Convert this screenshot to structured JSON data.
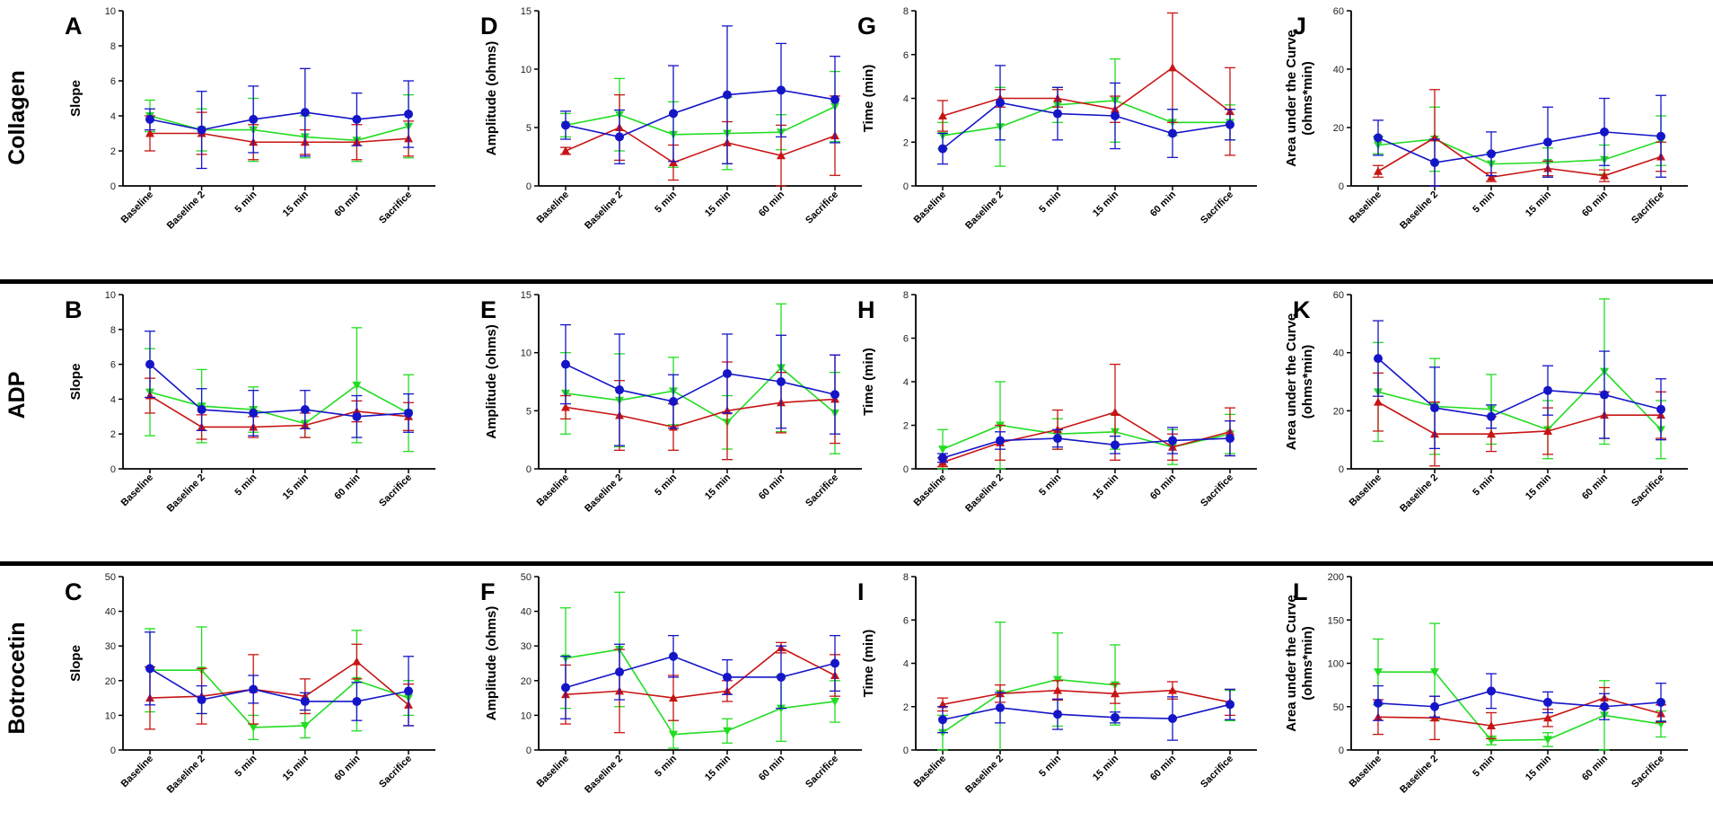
{
  "figure": {
    "row_labels": [
      "Collagen",
      "ADP",
      "Botrocetin"
    ],
    "series_colors": {
      "blue": "#1515c8",
      "green": "#22dd22",
      "red": "#c81414"
    }
  },
  "chart_data": [
    {
      "panel": "A",
      "agonist": "Collagen",
      "type": "line",
      "ylabel": "Slope",
      "ylim": [
        0,
        10
      ],
      "yticks": [
        0,
        2,
        4,
        6,
        8,
        10
      ],
      "categories": [
        "Baseline",
        "Baseline 2",
        "5 min",
        "15 min",
        "60 min",
        "Sacrifice"
      ],
      "series": [
        {
          "name": "blue",
          "values": [
            3.8,
            3.2,
            3.8,
            4.2,
            3.8,
            4.1
          ],
          "err": [
            0.6,
            2.2,
            1.9,
            2.5,
            1.5,
            1.9
          ]
        },
        {
          "name": "green",
          "values": [
            4.0,
            3.2,
            3.2,
            2.8,
            2.6,
            3.4
          ],
          "err": [
            0.9,
            1.2,
            1.8,
            1.2,
            1.2,
            1.8
          ]
        },
        {
          "name": "red",
          "values": [
            3.0,
            3.0,
            2.5,
            2.5,
            2.5,
            2.7
          ],
          "err": [
            1.0,
            1.2,
            1.0,
            0.7,
            1.0,
            1.0
          ]
        }
      ]
    },
    {
      "panel": "D",
      "agonist": "Collagen",
      "type": "line",
      "ylabel": "Amplitude (ohms)",
      "ylim": [
        0,
        15
      ],
      "yticks": [
        0,
        5,
        10,
        15
      ],
      "categories": [
        "Baseline",
        "Baseline 2",
        "5 min",
        "15 min",
        "60 min",
        "Sacrifice"
      ],
      "series": [
        {
          "name": "blue",
          "values": [
            5.2,
            4.2,
            6.2,
            7.8,
            8.2,
            7.4
          ],
          "err": [
            1.2,
            2.3,
            4.1,
            5.9,
            4.0,
            3.7
          ]
        },
        {
          "name": "green",
          "values": [
            5.2,
            6.1,
            4.4,
            4.5,
            4.6,
            6.8
          ],
          "err": [
            1.0,
            3.1,
            2.8,
            3.1,
            1.5,
            3.0
          ]
        },
        {
          "name": "red",
          "values": [
            3.0,
            5.0,
            2.0,
            3.7,
            2.6,
            4.3
          ],
          "err": [
            0.3,
            2.8,
            1.5,
            1.8,
            2.6,
            3.4
          ]
        }
      ]
    },
    {
      "panel": "G",
      "agonist": "Collagen",
      "type": "line",
      "ylabel": "Time (min)",
      "ylim": [
        0,
        8
      ],
      "yticks": [
        0,
        2,
        4,
        6,
        8
      ],
      "categories": [
        "Baseline",
        "Baseline 2",
        "5 min",
        "15 min",
        "60 min",
        "Sacrifice"
      ],
      "series": [
        {
          "name": "blue",
          "values": [
            1.7,
            3.8,
            3.3,
            3.2,
            2.4,
            2.8
          ],
          "err": [
            0.7,
            1.7,
            1.2,
            1.5,
            1.1,
            0.7
          ]
        },
        {
          "name": "green",
          "values": [
            2.3,
            2.7,
            3.7,
            3.9,
            2.9,
            2.9
          ],
          "err": [
            0.6,
            1.8,
            0.8,
            1.9,
            0.6,
            0.8
          ]
        },
        {
          "name": "red",
          "values": [
            3.2,
            4.0,
            4.0,
            3.5,
            5.4,
            3.4
          ],
          "err": [
            0.7,
            0.4,
            0.4,
            0.6,
            2.5,
            2.0
          ]
        }
      ]
    },
    {
      "panel": "J",
      "agonist": "Collagen",
      "type": "line",
      "ylabel": "Area under the Curve (ohms*min)",
      "ylim": [
        0,
        60
      ],
      "yticks": [
        0,
        20,
        40,
        60
      ],
      "categories": [
        "Baseline",
        "Baseline 2",
        "5 min",
        "15 min",
        "60 min",
        "Sacrifice"
      ],
      "series": [
        {
          "name": "blue",
          "values": [
            16.5,
            8.0,
            11.0,
            15.0,
            18.5,
            17.0
          ],
          "err": [
            6.0,
            8.0,
            7.5,
            12.0,
            11.5,
            14.0
          ]
        },
        {
          "name": "green",
          "values": [
            14.0,
            16.0,
            7.5,
            8.0,
            9.0,
            15.5
          ],
          "err": [
            3.0,
            11.0,
            4.0,
            5.0,
            5.0,
            8.5
          ]
        },
        {
          "name": "red",
          "values": [
            5.0,
            16.5,
            3.0,
            6.0,
            3.5,
            10.0
          ],
          "err": [
            2.0,
            16.5,
            1.5,
            2.5,
            2.0,
            5.0
          ]
        }
      ]
    },
    {
      "panel": "B",
      "agonist": "ADP",
      "type": "line",
      "ylabel": "Slope",
      "ylim": [
        0,
        10
      ],
      "yticks": [
        0,
        2,
        4,
        6,
        8,
        10
      ],
      "categories": [
        "Baseline",
        "Baseline 2",
        "5 min",
        "15 min",
        "60 min",
        "Sacrifice"
      ],
      "series": [
        {
          "name": "blue",
          "values": [
            6.0,
            3.4,
            3.2,
            3.4,
            3.0,
            3.2
          ],
          "err": [
            1.9,
            1.2,
            1.3,
            1.1,
            1.2,
            1.1
          ]
        },
        {
          "name": "green",
          "values": [
            4.4,
            3.6,
            3.4,
            2.6,
            4.8,
            3.2
          ],
          "err": [
            2.5,
            2.1,
            1.3,
            0.8,
            3.3,
            2.2
          ]
        },
        {
          "name": "red",
          "values": [
            4.2,
            2.4,
            2.4,
            2.5,
            3.3,
            3.0
          ],
          "err": [
            1.0,
            0.7,
            0.6,
            0.7,
            0.6,
            0.8
          ]
        }
      ]
    },
    {
      "panel": "E",
      "agonist": "ADP",
      "type": "line",
      "ylabel": "Amplitude (ohms)",
      "ylim": [
        0,
        15
      ],
      "yticks": [
        0,
        5,
        10,
        15
      ],
      "categories": [
        "Baseline",
        "Baseline 2",
        "5 min",
        "15 min",
        "60 min",
        "Sacrifice"
      ],
      "series": [
        {
          "name": "blue",
          "values": [
            9.0,
            6.8,
            5.8,
            8.2,
            7.5,
            6.4
          ],
          "err": [
            3.4,
            4.8,
            2.3,
            3.4,
            4.0,
            3.4
          ]
        },
        {
          "name": "green",
          "values": [
            6.5,
            5.9,
            6.7,
            4.0,
            8.7,
            4.8
          ],
          "err": [
            3.5,
            4.0,
            2.9,
            2.3,
            5.5,
            3.5
          ]
        },
        {
          "name": "red",
          "values": [
            5.3,
            4.6,
            3.6,
            5.0,
            5.7,
            6.0
          ],
          "err": [
            1.0,
            3.0,
            2.0,
            4.2,
            2.6,
            3.8
          ]
        }
      ]
    },
    {
      "panel": "H",
      "agonist": "ADP",
      "type": "line",
      "ylabel": "Time (min)",
      "ylim": [
        0,
        8
      ],
      "yticks": [
        0,
        2,
        4,
        6,
        8
      ],
      "categories": [
        "Baseline",
        "Baseline 2",
        "5 min",
        "15 min",
        "60 min",
        "Sacrifice"
      ],
      "series": [
        {
          "name": "blue",
          "values": [
            0.5,
            1.3,
            1.4,
            1.1,
            1.3,
            1.4
          ],
          "err": [
            0.2,
            0.4,
            0.4,
            0.4,
            0.6,
            0.8
          ]
        },
        {
          "name": "green",
          "values": [
            0.9,
            2.0,
            1.6,
            1.7,
            1.0,
            1.6
          ],
          "err": [
            0.9,
            2.0,
            0.7,
            0.8,
            0.8,
            0.9
          ]
        },
        {
          "name": "red",
          "values": [
            0.3,
            1.2,
            1.8,
            2.6,
            1.0,
            1.7
          ],
          "err": [
            0.2,
            0.8,
            0.9,
            2.2,
            0.6,
            1.1
          ]
        }
      ]
    },
    {
      "panel": "K",
      "agonist": "ADP",
      "type": "line",
      "ylabel": "Area under the Curve (ohms*min)",
      "ylim": [
        0,
        60
      ],
      "yticks": [
        0,
        20,
        40,
        60
      ],
      "categories": [
        "Baseline",
        "Baseline 2",
        "5 min",
        "15 min",
        "60 min",
        "Sacrifice"
      ],
      "series": [
        {
          "name": "blue",
          "values": [
            38.0,
            21.0,
            18.0,
            27.0,
            25.5,
            20.5
          ],
          "err": [
            13.0,
            14.0,
            4.0,
            8.5,
            15.0,
            10.5
          ]
        },
        {
          "name": "green",
          "values": [
            26.5,
            21.5,
            20.5,
            13.5,
            33.5,
            13.5
          ],
          "err": [
            17.0,
            16.5,
            12.0,
            10.0,
            25.0,
            10.0
          ]
        },
        {
          "name": "red",
          "values": [
            23.0,
            12.0,
            12.0,
            13.0,
            18.5,
            18.5
          ],
          "err": [
            10.0,
            11.0,
            6.0,
            8.0,
            8.0,
            8.0
          ]
        }
      ]
    },
    {
      "panel": "C",
      "agonist": "Botrocetin",
      "type": "line",
      "ylabel": "Slope",
      "ylim": [
        0,
        50
      ],
      "yticks": [
        0,
        10,
        20,
        30,
        40,
        50
      ],
      "categories": [
        "Baseline",
        "Baseline 2",
        "5 min",
        "15 min",
        "60 min",
        "Sacrifice"
      ],
      "series": [
        {
          "name": "blue",
          "values": [
            23.5,
            14.5,
            17.5,
            14.0,
            14.0,
            17.0
          ],
          "err": [
            10.5,
            4.0,
            4.0,
            2.5,
            5.5,
            10.0
          ]
        },
        {
          "name": "green",
          "values": [
            23.0,
            23.0,
            6.5,
            7.0,
            20.0,
            15.0
          ],
          "err": [
            12.0,
            12.5,
            3.5,
            3.5,
            14.5,
            5.0
          ]
        },
        {
          "name": "red",
          "values": [
            15.0,
            15.5,
            17.5,
            15.5,
            25.5,
            13.0
          ],
          "err": [
            9.0,
            8.0,
            10.0,
            5.0,
            5.0,
            6.0
          ]
        }
      ]
    },
    {
      "panel": "F",
      "agonist": "Botrocetin",
      "type": "line",
      "ylabel": "Amplitude (ohms)",
      "ylim": [
        0,
        50
      ],
      "yticks": [
        0,
        10,
        20,
        30,
        40,
        50
      ],
      "categories": [
        "Baseline",
        "Baseline 2",
        "5 min",
        "15 min",
        "60 min",
        "Sacrifice"
      ],
      "series": [
        {
          "name": "blue",
          "values": [
            18.0,
            22.5,
            27.0,
            21.0,
            21.0,
            25.0
          ],
          "err": [
            9.0,
            8.0,
            6.0,
            5.0,
            9.0,
            8.0
          ]
        },
        {
          "name": "green",
          "values": [
            26.5,
            29.0,
            4.5,
            5.5,
            12.0,
            14.0
          ],
          "err": [
            14.5,
            16.5,
            4.0,
            3.5,
            9.5,
            6.0
          ]
        },
        {
          "name": "red",
          "values": [
            16.0,
            17.0,
            15.0,
            17.0,
            29.5,
            21.5
          ],
          "err": [
            8.5,
            12.0,
            6.5,
            3.0,
            1.5,
            6.0
          ]
        }
      ]
    },
    {
      "panel": "I",
      "agonist": "Botrocetin",
      "type": "line",
      "ylabel": "Time (min)",
      "ylim": [
        0,
        8
      ],
      "yticks": [
        0,
        2,
        4,
        6,
        8
      ],
      "categories": [
        "Baseline",
        "Baseline 2",
        "5 min",
        "15 min",
        "60 min",
        "Sacrifice"
      ],
      "series": [
        {
          "name": "blue",
          "values": [
            1.4,
            1.95,
            1.65,
            1.5,
            1.45,
            2.1
          ],
          "err": [
            0.6,
            0.7,
            0.7,
            0.25,
            1.0,
            0.7
          ]
        },
        {
          "name": "green",
          "values": [
            0.8,
            2.6,
            3.25,
            3.0,
            null,
            2.05
          ],
          "err": [
            0.8,
            3.3,
            2.15,
            1.85,
            0,
            0.7
          ]
        },
        {
          "name": "red",
          "values": [
            2.1,
            2.6,
            2.75,
            2.6,
            2.75,
            2.2
          ],
          "err": [
            0.3,
            0.4,
            0.45,
            0.45,
            0.4,
            0.6
          ]
        }
      ]
    },
    {
      "panel": "L",
      "agonist": "Botrocetin",
      "type": "line",
      "ylabel": "Area under the Curve (ohms*min)",
      "ylim": [
        0,
        200
      ],
      "yticks": [
        0,
        50,
        100,
        150,
        200
      ],
      "categories": [
        "Baseline",
        "Baseline 2",
        "5 min",
        "15 min",
        "60 min",
        "Sacrifice"
      ],
      "series": [
        {
          "name": "blue",
          "values": [
            54.0,
            50.0,
            68.0,
            55.0,
            50.0,
            55.0
          ],
          "err": [
            20.0,
            12.0,
            20.0,
            12.0,
            15.0,
            22.0
          ]
        },
        {
          "name": "green",
          "values": [
            90.0,
            90.0,
            11.0,
            12.0,
            40.0,
            30.0
          ],
          "err": [
            38.0,
            56.0,
            5.0,
            8.0,
            40.0,
            15.0
          ]
        },
        {
          "name": "red",
          "values": [
            38.0,
            37.0,
            28.0,
            37.0,
            60.0,
            42.0
          ],
          "err": [
            20.0,
            25.0,
            15.0,
            10.0,
            12.0,
            10.0
          ]
        }
      ]
    }
  ]
}
